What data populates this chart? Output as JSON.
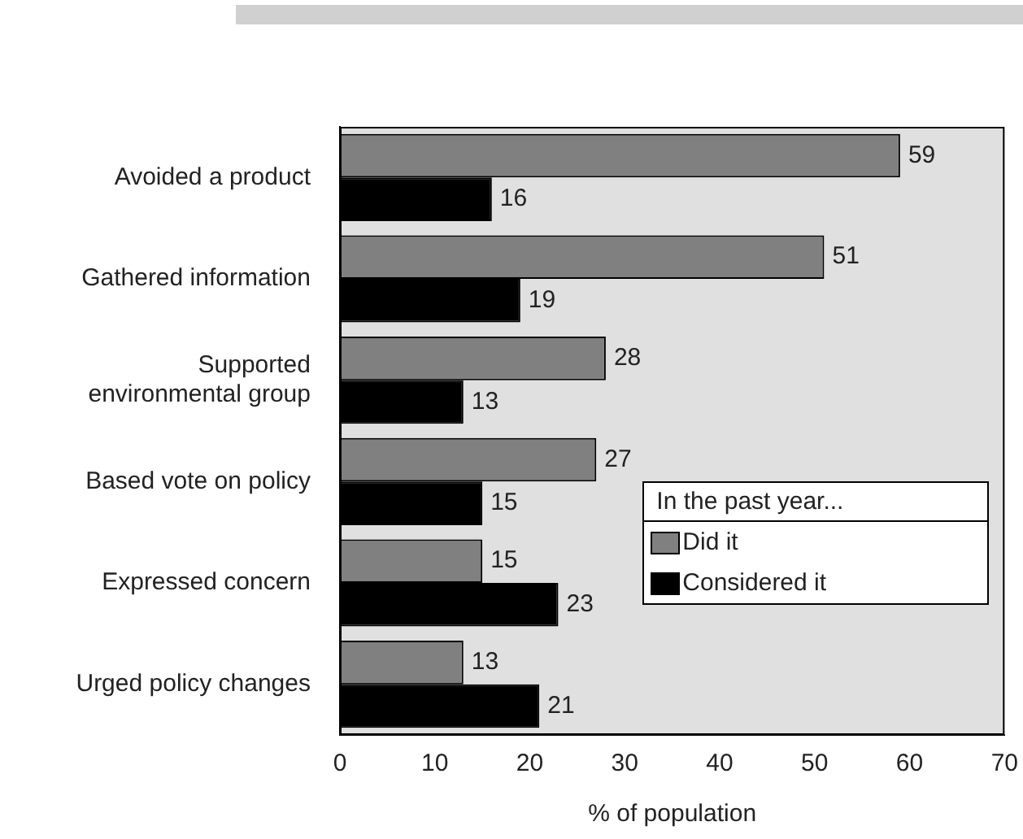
{
  "chart_data": {
    "type": "bar",
    "orientation": "horizontal",
    "xlabel": "% of population",
    "legend_title": "In the past year...",
    "legend": "bottom right",
    "data_labels": true,
    "grid": false,
    "categories": [
      "Avoided a product",
      "Gathered information",
      "Supported environmental group",
      "Based vote on policy",
      "Expressed concern",
      "Urged policy changes"
    ],
    "series": [
      {
        "name": "Did it",
        "color": "#808080",
        "values": [
          59,
          51,
          28,
          27,
          15,
          13
        ]
      },
      {
        "name": "Considered it",
        "color": "#000000",
        "values": [
          16,
          19,
          13,
          15,
          23,
          21
        ]
      }
    ],
    "xlim": [
      0,
      70
    ],
    "xticks": [
      0,
      10,
      20,
      30,
      40,
      50,
      60,
      70
    ]
  }
}
